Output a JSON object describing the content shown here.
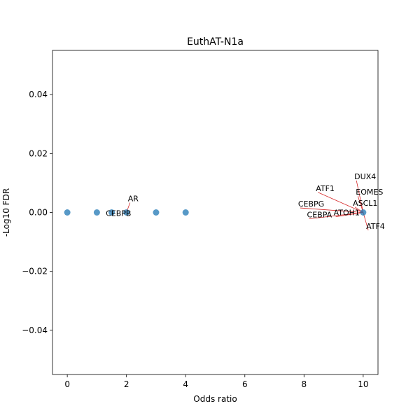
{
  "chart_data": {
    "type": "scatter",
    "title": "EuthAT-N1a",
    "xlabel": "Odds ratio",
    "ylabel": "-Log10 FDR",
    "xlim": [
      -0.5,
      10.5
    ],
    "ylim": [
      -0.055,
      0.055
    ],
    "xticks": [
      0,
      2,
      4,
      6,
      8,
      10
    ],
    "xtick_labels": [
      "0",
      "2",
      "4",
      "6",
      "8",
      "10"
    ],
    "yticks": [
      -0.04,
      -0.02,
      0.0,
      0.02,
      0.04
    ],
    "ytick_labels": [
      "−0.04",
      "−0.02",
      "0.00",
      "0.02",
      "0.04"
    ],
    "grid": false,
    "point_color": "#1f77b4",
    "annotation_line_color": "#d62728",
    "points": [
      {
        "x": 0,
        "y": 0
      },
      {
        "x": 1,
        "y": 0
      },
      {
        "x": 1.5,
        "y": 0
      },
      {
        "x": 2,
        "y": 0
      },
      {
        "x": 3,
        "y": 0
      },
      {
        "x": 4,
        "y": 0
      },
      {
        "x": 10,
        "y": 0
      }
    ],
    "annotations": [
      {
        "text": "AR",
        "x": 2,
        "y": 0,
        "tx": 2.05,
        "ty": 0.0038,
        "line": true
      },
      {
        "text": "CEBPB",
        "x": 2,
        "y": 0,
        "tx": 1.3,
        "ty": -0.0012,
        "line": false
      },
      {
        "text": "DUX4",
        "x": 10,
        "y": 0,
        "tx": 9.7,
        "ty": 0.0113,
        "line": true
      },
      {
        "text": "ATF1",
        "x": 10,
        "y": 0,
        "tx": 8.4,
        "ty": 0.0073,
        "line": true
      },
      {
        "text": "EOMES",
        "x": 10,
        "y": 0,
        "tx": 9.75,
        "ty": 0.006,
        "line": true
      },
      {
        "text": "ASCL1",
        "x": 10,
        "y": 0,
        "tx": 9.65,
        "ty": 0.0023,
        "line": true
      },
      {
        "text": "CEBPG",
        "x": 10,
        "y": 0,
        "tx": 7.8,
        "ty": 0.002,
        "line": true
      },
      {
        "text": "CEBPA",
        "x": 10,
        "y": 0,
        "tx": 8.1,
        "ty": -0.0017,
        "line": true
      },
      {
        "text": "ATOH1",
        "x": 10,
        "y": 0,
        "tx": 9.0,
        "ty": -0.001,
        "line": true
      },
      {
        "text": "ATF4",
        "x": 10,
        "y": 0,
        "tx": 10.1,
        "ty": -0.0056,
        "line": true
      }
    ]
  }
}
